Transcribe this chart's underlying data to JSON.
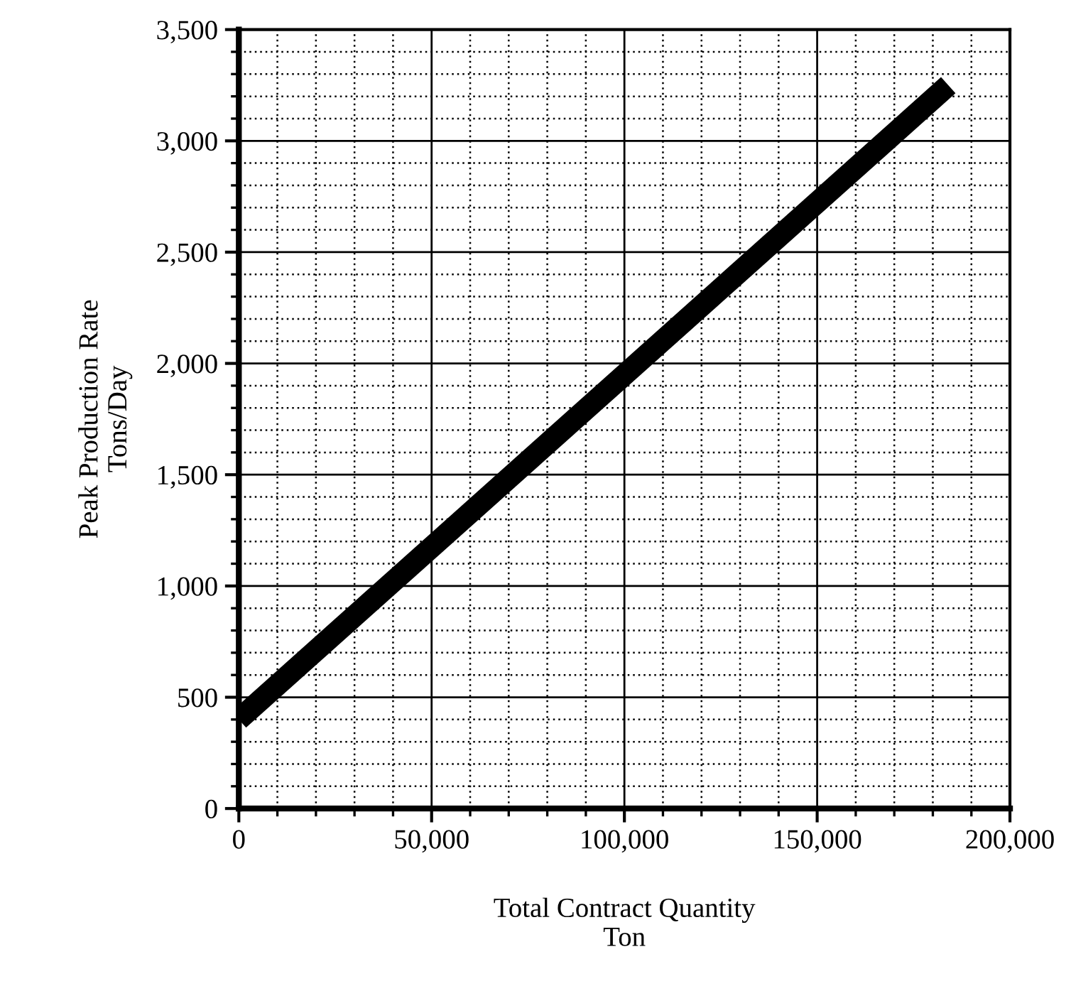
{
  "chart_data": {
    "type": "line",
    "xlabel": "Total Contract Quantity\nTon",
    "ylabel": "Peak Production Rate\nTons/Day",
    "x": [
      0,
      184000
    ],
    "values": [
      400,
      3250
    ],
    "color": "#000000",
    "xlim": [
      0,
      200000
    ],
    "ylim": [
      0,
      3500
    ],
    "xticks": [
      0,
      {
        "value": 50000,
        "label": "50,000"
      },
      {
        "value": 100000,
        "label": "100,000"
      },
      {
        "value": 150000,
        "label": "150,000"
      },
      {
        "value": 200000,
        "label": "200,000"
      }
    ],
    "yticks": [
      0,
      500,
      {
        "value": 1000,
        "label": "1,000"
      },
      {
        "value": 1500,
        "label": "1,500"
      },
      {
        "value": 2000,
        "label": "2,000"
      },
      {
        "value": 2500,
        "label": "2,500"
      },
      {
        "value": 3000,
        "label": "3,000"
      },
      {
        "value": 3500,
        "label": "3,500"
      }
    ],
    "grid": true,
    "line_style": "solid",
    "marker": "none"
  }
}
